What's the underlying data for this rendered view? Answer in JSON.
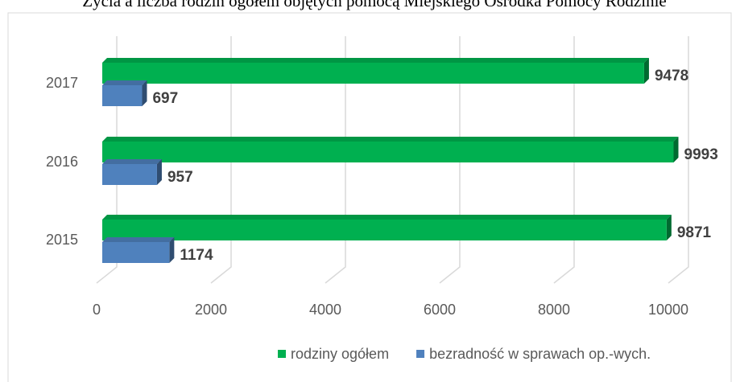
{
  "chart_data": {
    "type": "bar",
    "orientation": "horizontal",
    "title": "Życia a liczba rodzin ogółem objętych pomocą Miejskiego Ośrodka Pomocy Rodzinie",
    "categories": [
      "2017",
      "2016",
      "2015"
    ],
    "series": [
      {
        "name": "rodziny ogółem",
        "color": "#00b050",
        "values": [
          9478,
          9993,
          9871
        ]
      },
      {
        "name": "bezradność w sprawach op.-wych.",
        "color": "#4f81bd",
        "values": [
          697,
          957,
          1174
        ]
      }
    ],
    "xlim": [
      0,
      10000
    ],
    "xticks": [
      0,
      2000,
      4000,
      6000,
      8000,
      10000
    ],
    "grid": true,
    "legend": "bottom"
  }
}
